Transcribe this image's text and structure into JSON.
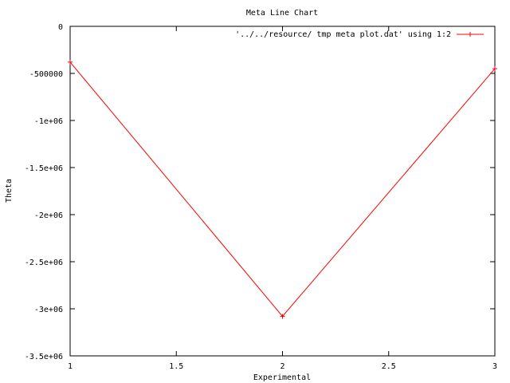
{
  "chart_data": {
    "type": "line",
    "title": "Meta Line Chart",
    "xlabel": "Experimental",
    "ylabel": "Theta",
    "xlim": [
      1,
      3
    ],
    "ylim": [
      -3500000,
      0
    ],
    "x_ticks": [
      {
        "value": 1,
        "label": "1"
      },
      {
        "value": 1.5,
        "label": "1.5"
      },
      {
        "value": 2,
        "label": "2"
      },
      {
        "value": 2.5,
        "label": "2.5"
      },
      {
        "value": 3,
        "label": "3"
      }
    ],
    "y_ticks": [
      {
        "value": 0,
        "label": "0"
      },
      {
        "value": -500000,
        "label": "-500000"
      },
      {
        "value": -1000000,
        "label": "-1e+06"
      },
      {
        "value": -1500000,
        "label": "-1.5e+06"
      },
      {
        "value": -2000000,
        "label": "-2e+06"
      },
      {
        "value": -2500000,
        "label": "-2.5e+06"
      },
      {
        "value": -3000000,
        "label": "-3e+06"
      },
      {
        "value": -3500000,
        "label": "-3.5e+06"
      }
    ],
    "grid": false,
    "legend_position": "top-right",
    "series": [
      {
        "name": "'../../resource/ tmp meta plot.dat' using 1:2",
        "color": "#ff0000",
        "marker": "plus",
        "x": [
          1,
          2,
          3
        ],
        "y": [
          -380000,
          -3080000,
          -450000
        ]
      }
    ]
  }
}
